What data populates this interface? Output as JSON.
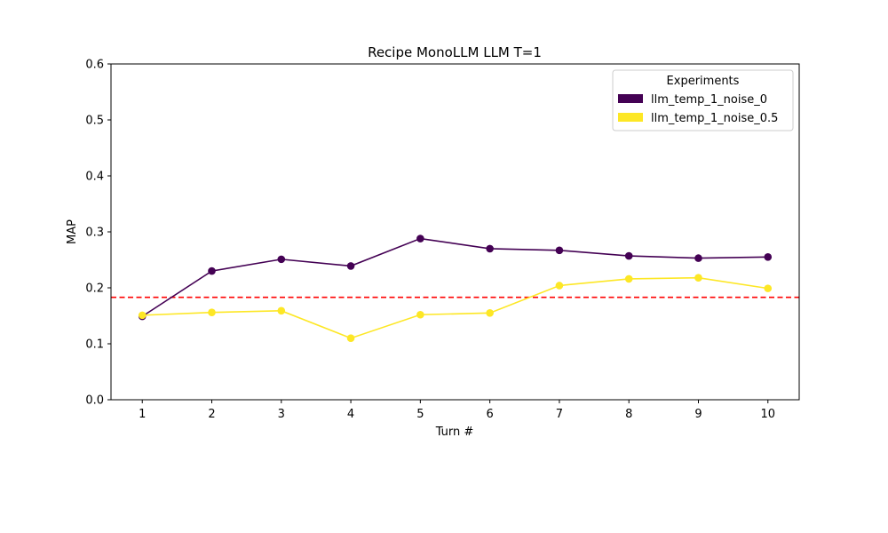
{
  "chart_data": {
    "type": "line",
    "title": "Recipe MonoLLM LLM T=1",
    "xlabel": "Turn #",
    "ylabel": "MAP",
    "x": [
      1,
      2,
      3,
      4,
      5,
      6,
      7,
      8,
      9,
      10
    ],
    "xlim": [
      0.55,
      10.45
    ],
    "ylim": [
      0.0,
      0.6
    ],
    "x_ticks": [
      "1",
      "2",
      "3",
      "4",
      "5",
      "6",
      "7",
      "8",
      "9",
      "10"
    ],
    "y_ticks": [
      "0.0",
      "0.1",
      "0.2",
      "0.3",
      "0.4",
      "0.5",
      "0.6"
    ],
    "grid": false,
    "legend": {
      "title": "Experiments",
      "placement": "top-right"
    },
    "series": [
      {
        "name": "llm_temp_1_noise_0",
        "color": "#440154",
        "values": [
          0.149,
          0.23,
          0.251,
          0.239,
          0.288,
          0.27,
          0.267,
          0.257,
          0.253,
          0.255
        ]
      },
      {
        "name": "llm_temp_1_noise_0.5",
        "color": "#fde725",
        "values": [
          0.151,
          0.156,
          0.159,
          0.11,
          0.152,
          0.155,
          0.204,
          0.216,
          0.218,
          0.199
        ]
      }
    ],
    "reference_line": {
      "y": 0.183,
      "color": "#ff0000",
      "style": "dashed"
    }
  }
}
